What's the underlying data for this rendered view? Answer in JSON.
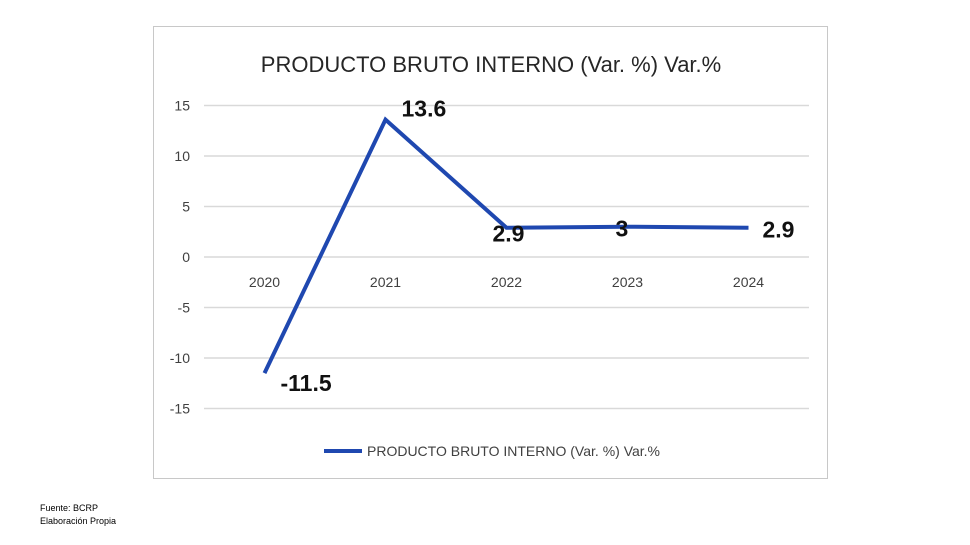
{
  "chart_data": {
    "type": "line",
    "title": "PRODUCTO BRUTO INTERNO (Var. %) Var.%",
    "categories": [
      "2020",
      "2021",
      "2022",
      "2023",
      "2024"
    ],
    "series": [
      {
        "name": "PRODUCTO BRUTO INTERNO (Var. %) Var.%",
        "values": [
          -11.5,
          13.6,
          2.9,
          3,
          2.9
        ],
        "labels": [
          "-11.5",
          "13.6",
          "2.9",
          "3",
          "2.9"
        ]
      }
    ],
    "yticks": [
      "15",
      "10",
      "5",
      "0",
      "-5",
      "-10",
      "-15"
    ],
    "ylim": [
      -15,
      15
    ],
    "grid": true,
    "legend": "bottom",
    "colors": {
      "line": "#1f48b0",
      "grid": "#d9d9d9",
      "text": "#262626"
    }
  },
  "footer": {
    "source": "Fuente: BCRP",
    "note": "Elaboración Propia"
  }
}
